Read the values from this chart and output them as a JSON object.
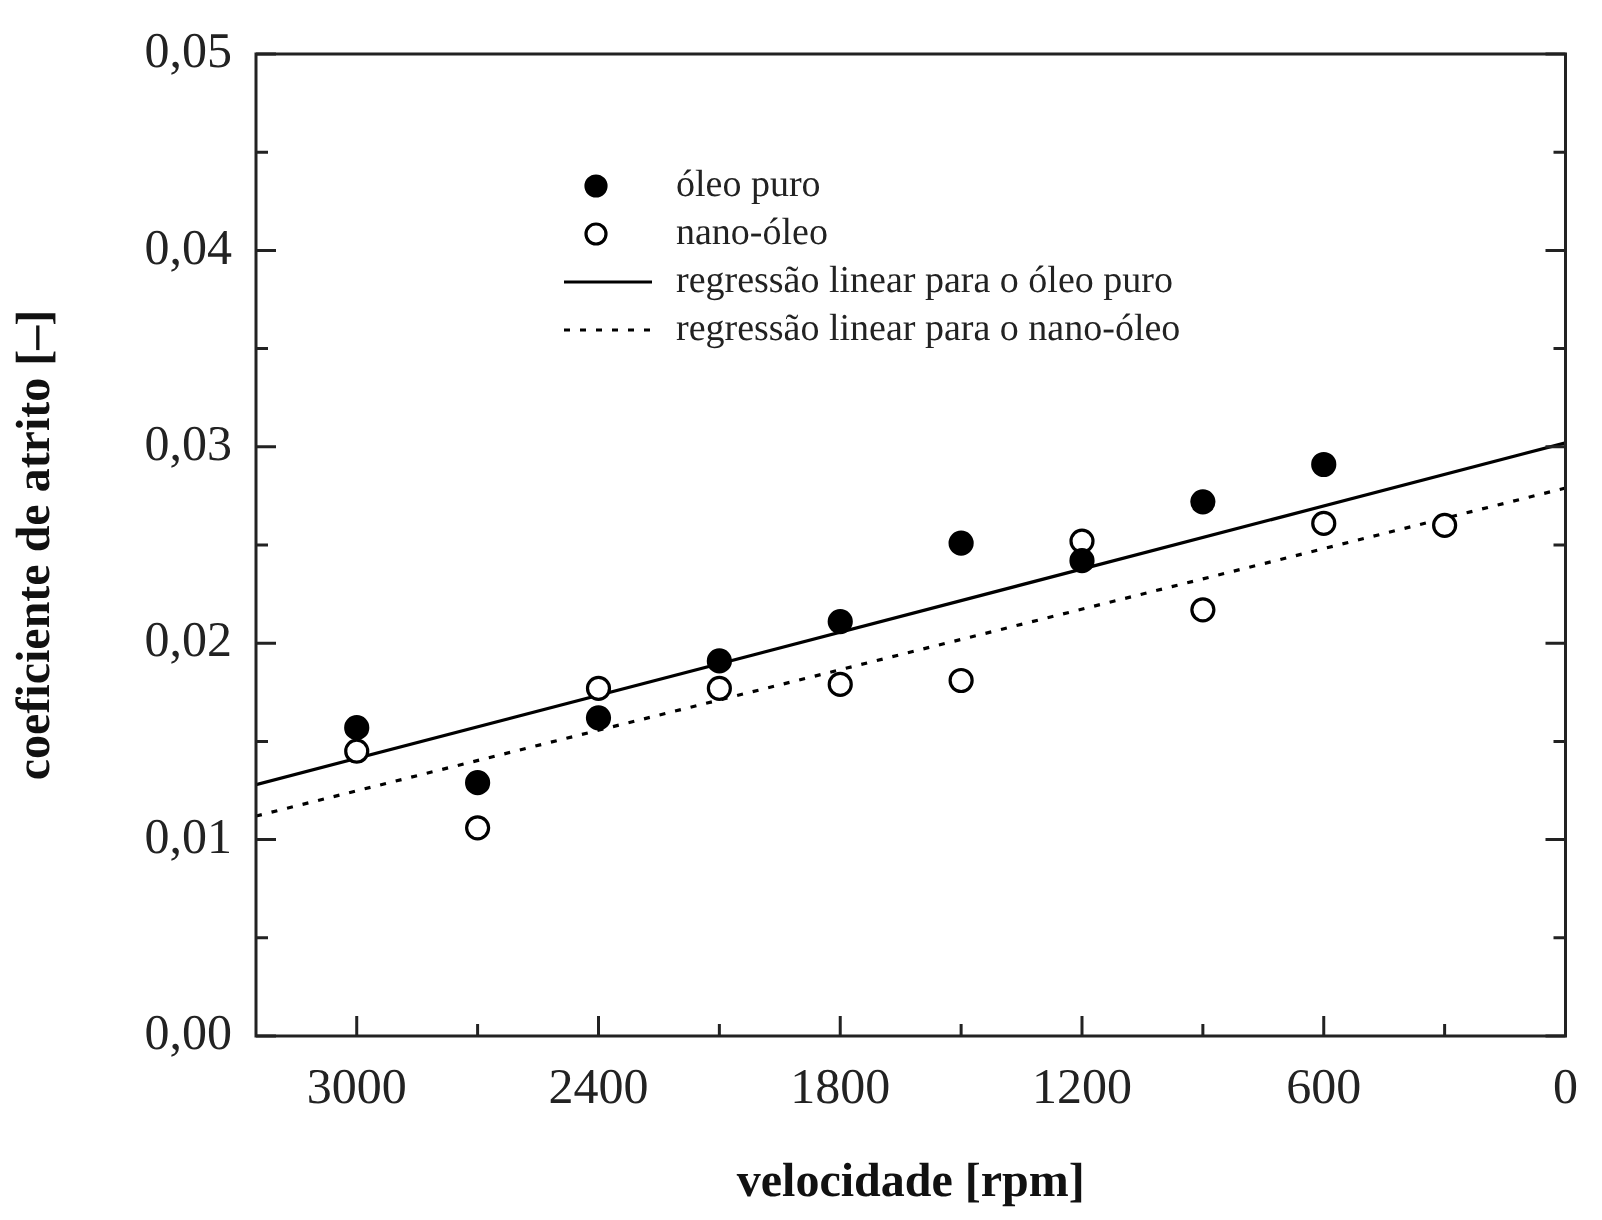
{
  "chart_data": {
    "type": "scatter",
    "xlabel": "velocidade [rpm]",
    "ylabel": "coeficiente de atrito [–]",
    "xlim": [
      3250,
      0
    ],
    "xticks": [
      3000,
      {
        "value": 2700,
        "label": null
      },
      2400,
      {
        "value": 2100,
        "label": null
      },
      1800,
      {
        "value": 1500,
        "label": null
      },
      1200,
      {
        "value": 900,
        "label": null
      },
      600,
      {
        "value": 300,
        "label": null
      },
      0
    ],
    "ylim": [
      0,
      0.05
    ],
    "yticks": [
      {
        "value": 0,
        "label": "0,00"
      },
      {
        "value": 0.005,
        "label": null
      },
      {
        "value": 0.01,
        "label": "0,01"
      },
      {
        "value": 0.015,
        "label": null
      },
      {
        "value": 0.02,
        "label": "0,02"
      },
      {
        "value": 0.025,
        "label": null
      },
      {
        "value": 0.03,
        "label": "0,03"
      },
      {
        "value": 0.035,
        "label": null
      },
      {
        "value": 0.04,
        "label": "0,04"
      },
      {
        "value": 0.045,
        "label": null
      },
      {
        "value": 0.05,
        "label": "0,05"
      }
    ],
    "grid": false,
    "legend": "top",
    "marker": "circle",
    "series": [
      {
        "name": "óleo puro",
        "color": "#000000",
        "x": [
          3000,
          2700,
          2400,
          2100,
          1800,
          1500,
          1200,
          900,
          600
        ],
        "values": [
          0.0157,
          0.0129,
          0.0162,
          0.0191,
          0.0211,
          0.0251,
          0.0242,
          0.0272,
          0.0291
        ]
      },
      {
        "name": "nano-óleo",
        "color": "#000000",
        "x": [
          3000,
          2700,
          2400,
          2100,
          1800,
          1500,
          1200,
          900,
          600,
          300
        ],
        "values": [
          0.0145,
          0.0106,
          0.0177,
          0.0177,
          0.0179,
          0.0181,
          0.0252,
          0.0217,
          0.0261,
          0.026
        ]
      },
      {
        "name": "regressão linear para o óleo puro",
        "type": "line",
        "color": "#000000",
        "marker": "none",
        "line_style": "solid",
        "x": [
          3250,
          0
        ],
        "values": [
          0.0128,
          0.0302
        ]
      },
      {
        "name": "regressão linear para o nano-óleo",
        "type": "line",
        "color": "#000000",
        "marker": "none",
        "line_style": "dotted",
        "x": [
          3250,
          0
        ],
        "values": [
          0.0112,
          0.0279
        ]
      }
    ]
  }
}
